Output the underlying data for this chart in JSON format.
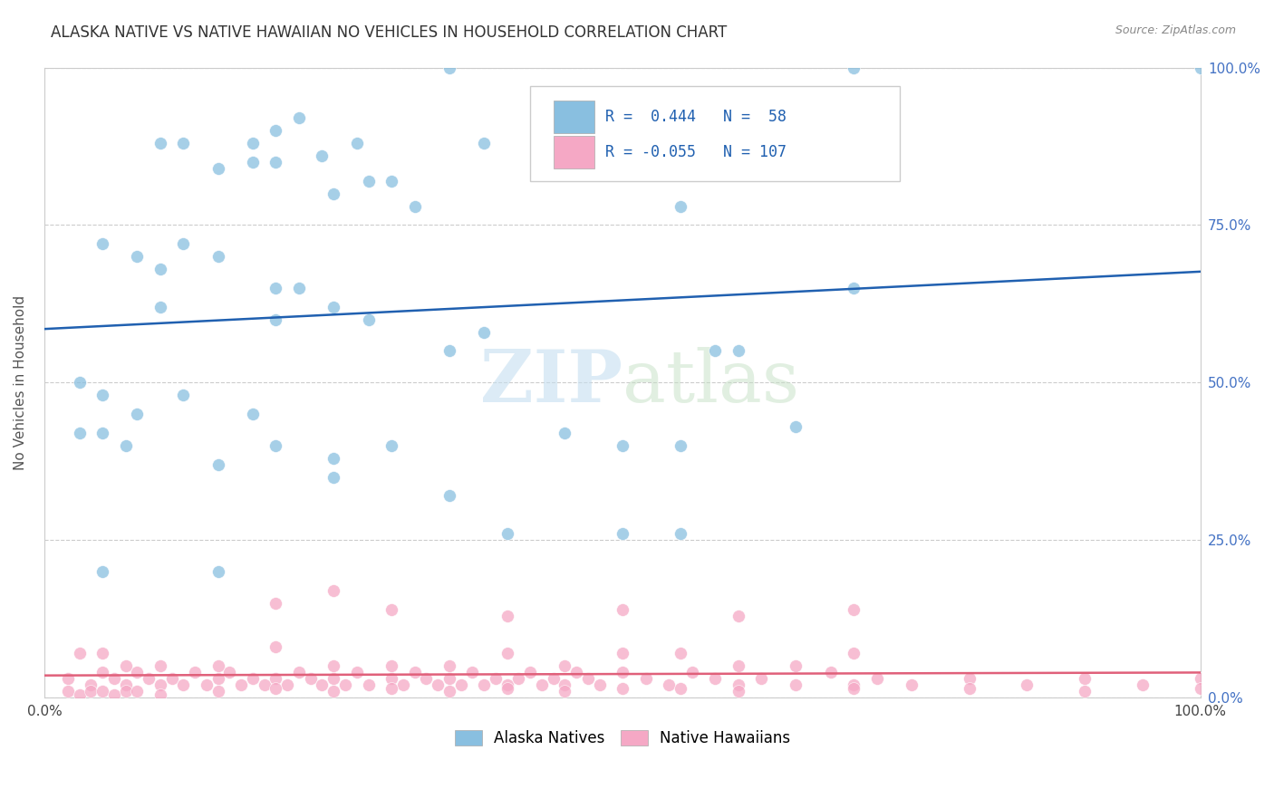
{
  "title": "ALASKA NATIVE VS NATIVE HAWAIIAN NO VEHICLES IN HOUSEHOLD CORRELATION CHART",
  "source": "Source: ZipAtlas.com",
  "ylabel": "No Vehicles in Household",
  "legend_labels": [
    "Alaska Natives",
    "Native Hawaiians"
  ],
  "watermark_zip": "ZIP",
  "watermark_atlas": "atlas",
  "r_alaska": 0.444,
  "n_alaska": 58,
  "r_hawaiian": -0.055,
  "n_hawaiian": 107,
  "alaska_color": "#89bfe0",
  "hawaiian_color": "#f5a8c5",
  "alaska_line_color": "#2060b0",
  "hawaiian_line_color": "#e0607a",
  "alaska_x": [
    0.5,
    1.5,
    3.5,
    7.0,
    1.0,
    2.0,
    2.2,
    2.5,
    2.7,
    3.0,
    3.2,
    3.8,
    1.8,
    2.0,
    2.4,
    2.8,
    1.2,
    1.5,
    1.8,
    5.5,
    10.0,
    1.0,
    2.0,
    0.5,
    0.8,
    1.0,
    1.2,
    1.5,
    2.0,
    2.2,
    2.5,
    2.8,
    3.5,
    3.8,
    4.5,
    5.5,
    5.8,
    6.5,
    0.3,
    0.5,
    0.7,
    1.5,
    2.5,
    3.5,
    4.0,
    5.0,
    6.0,
    7.0,
    0.3,
    0.5,
    0.8,
    1.2,
    1.8,
    2.0,
    2.5,
    3.0,
    5.0,
    5.5
  ],
  "alaska_y": [
    20.0,
    20.0,
    100.0,
    100.0,
    88.0,
    85.0,
    92.0,
    80.0,
    88.0,
    82.0,
    78.0,
    88.0,
    85.0,
    90.0,
    86.0,
    82.0,
    88.0,
    84.0,
    88.0,
    78.0,
    100.0,
    62.0,
    65.0,
    72.0,
    70.0,
    68.0,
    72.0,
    70.0,
    60.0,
    65.0,
    62.0,
    60.0,
    55.0,
    58.0,
    42.0,
    40.0,
    55.0,
    43.0,
    42.0,
    42.0,
    40.0,
    37.0,
    35.0,
    32.0,
    26.0,
    26.0,
    55.0,
    65.0,
    50.0,
    48.0,
    45.0,
    48.0,
    45.0,
    40.0,
    38.0,
    40.0,
    40.0,
    26.0
  ],
  "hawaiian_x": [
    0.2,
    0.4,
    0.5,
    0.6,
    0.7,
    0.8,
    0.9,
    1.0,
    1.1,
    1.2,
    1.3,
    1.4,
    1.5,
    1.6,
    1.7,
    1.8,
    1.9,
    2.0,
    2.1,
    2.2,
    2.3,
    2.4,
    2.5,
    2.6,
    2.7,
    2.8,
    3.0,
    3.1,
    3.2,
    3.3,
    3.4,
    3.5,
    3.6,
    3.7,
    3.8,
    3.9,
    4.0,
    4.1,
    4.2,
    4.3,
    4.4,
    4.5,
    4.6,
    4.7,
    4.8,
    5.0,
    5.2,
    5.4,
    5.6,
    5.8,
    6.0,
    6.2,
    6.5,
    6.8,
    7.0,
    7.2,
    7.5,
    8.0,
    8.5,
    9.0,
    9.5,
    10.0,
    0.3,
    0.5,
    0.7,
    1.0,
    1.5,
    2.0,
    2.5,
    3.0,
    3.5,
    4.0,
    4.5,
    5.0,
    5.5,
    6.0,
    6.5,
    7.0,
    0.2,
    0.3,
    0.4,
    0.5,
    0.6,
    0.7,
    0.8,
    1.0,
    1.5,
    2.0,
    2.5,
    3.0,
    3.5,
    4.0,
    4.5,
    5.0,
    5.5,
    6.0,
    7.0,
    8.0,
    9.0,
    10.0,
    2.0,
    2.5,
    3.0,
    4.0,
    5.0,
    6.0,
    7.0
  ],
  "hawaiian_y": [
    3.0,
    2.0,
    4.0,
    3.0,
    2.0,
    4.0,
    3.0,
    2.0,
    3.0,
    2.0,
    4.0,
    2.0,
    3.0,
    4.0,
    2.0,
    3.0,
    2.0,
    3.0,
    2.0,
    4.0,
    3.0,
    2.0,
    3.0,
    2.0,
    4.0,
    2.0,
    3.0,
    2.0,
    4.0,
    3.0,
    2.0,
    3.0,
    2.0,
    4.0,
    2.0,
    3.0,
    2.0,
    3.0,
    4.0,
    2.0,
    3.0,
    2.0,
    4.0,
    3.0,
    2.0,
    4.0,
    3.0,
    2.0,
    4.0,
    3.0,
    2.0,
    3.0,
    2.0,
    4.0,
    2.0,
    3.0,
    2.0,
    3.0,
    2.0,
    3.0,
    2.0,
    3.0,
    7.0,
    7.0,
    5.0,
    5.0,
    5.0,
    8.0,
    5.0,
    5.0,
    5.0,
    7.0,
    5.0,
    7.0,
    7.0,
    5.0,
    5.0,
    7.0,
    1.0,
    0.5,
    1.0,
    1.0,
    0.5,
    1.0,
    1.0,
    0.5,
    1.0,
    1.5,
    1.0,
    1.5,
    1.0,
    1.5,
    1.0,
    1.5,
    1.5,
    1.0,
    1.5,
    1.5,
    1.0,
    1.5,
    15.0,
    17.0,
    14.0,
    13.0,
    14.0,
    13.0,
    14.0
  ]
}
